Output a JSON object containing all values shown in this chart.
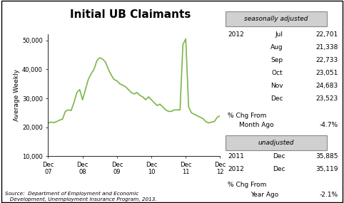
{
  "title": "Initial UB Claimants",
  "ylabel": "Average Weekly",
  "ylim": [
    10000,
    52000
  ],
  "yticks": [
    10000,
    20000,
    30000,
    40000,
    50000
  ],
  "ytick_labels": [
    "10,000",
    "20,000",
    "30,000",
    "40,000",
    "50,000"
  ],
  "xtick_labels": [
    "Dec\n07",
    "Dec\n08",
    "Dec\n09",
    "Dec\n10",
    "Dec\n11",
    "Dec\n12"
  ],
  "line_color": "#7ab648",
  "line_width": 1.2,
  "background_color": "#ffffff",
  "source_text": "Source:  Department of Employment and Economic\n   Development, Unemployment Insurance Program, 2013.",
  "seasonally_adjusted_label": "seasonally adjusted",
  "sa_data": {
    "year": "2012",
    "months": [
      "Jul",
      "Aug",
      "Sep",
      "Oct",
      "Nov",
      "Dec"
    ],
    "values": [
      "22,701",
      "21,338",
      "22,733",
      "23,051",
      "24,683",
      "23,523"
    ]
  },
  "unadjusted_label": "unadjusted",
  "ua_data": {
    "rows": [
      [
        "2011",
        "Dec",
        "35,885"
      ],
      [
        "2012",
        "Dec",
        "35,119"
      ]
    ]
  },
  "series_x": [
    0,
    1,
    2,
    3,
    4,
    5,
    6,
    7,
    8,
    9,
    10,
    11,
    12,
    13,
    14,
    15,
    16,
    17,
    18,
    19,
    20,
    21,
    22,
    23,
    24,
    25,
    26,
    27,
    28,
    29,
    30,
    31,
    32,
    33,
    34,
    35,
    36,
    37,
    38,
    39,
    40,
    41,
    42,
    43,
    44,
    45,
    46,
    47,
    48,
    49,
    50,
    51,
    52,
    53,
    54,
    55,
    56,
    57,
    58,
    59,
    60
  ],
  "series_y": [
    21500,
    21800,
    21600,
    22000,
    22500,
    22800,
    25500,
    26000,
    25800,
    28500,
    32000,
    33000,
    29500,
    33000,
    36500,
    38500,
    40000,
    43000,
    44000,
    43500,
    42500,
    40000,
    38000,
    36500,
    36000,
    35000,
    34500,
    34000,
    33000,
    32000,
    31500,
    32000,
    31000,
    30500,
    29500,
    30500,
    29500,
    28500,
    27500,
    28000,
    27000,
    26000,
    25500,
    25500,
    26000,
    26000,
    26000,
    48500,
    50500,
    27000,
    25000,
    24500,
    24000,
    23500,
    23000,
    22000,
    21500,
    21800,
    22000,
    23500,
    24000
  ]
}
